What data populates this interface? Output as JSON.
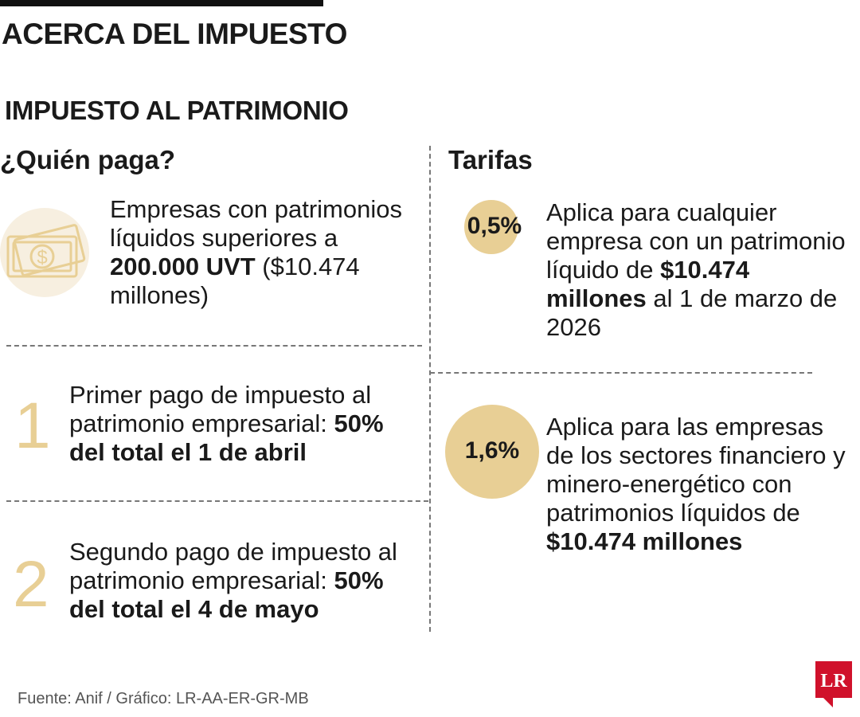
{
  "title": "ACERCA DEL IMPUESTO",
  "subtitle": "IMPUESTO AL PATRIMONIO",
  "who": {
    "heading": "¿Quién paga?",
    "icon": "money-bill-icon",
    "text_1": "Empresas con patrimonios líquidos superiores a ",
    "text_bold": "200.000 UVT",
    "text_2": " ($10.474 millones)"
  },
  "payments": [
    {
      "number": "1",
      "text": "Primer pago de impuesto al patrimonio empresarial: ",
      "bold": "50% del total el 1 de abril"
    },
    {
      "number": "2",
      "text": "Segundo pago de impuesto al patrimonio empresarial: ",
      "bold": "50% del total el 4 de mayo"
    }
  ],
  "rates": {
    "heading": "Tarifas",
    "items": [
      {
        "rate": "0,5%",
        "text_1": "Aplica para cualquier empresa con un patrimonio líquido de ",
        "bold": "$10.474 millones",
        "text_2": " al 1 de marzo de 2026"
      },
      {
        "rate": "1,6%",
        "text_1": "Aplica para las empresas de los sectores financiero y minero-energético con patrimonios líquidos de ",
        "bold": "$10.474 millones",
        "text_2": ""
      }
    ]
  },
  "source": "Fuente: Anif / Gráfico: LR-AA-ER-GR-MB",
  "logo": {
    "text": "LR",
    "color": "#d0112b"
  },
  "colors": {
    "accent": "#e8cf95",
    "icon_bg": "#f7efe0",
    "text": "#1a1a1a"
  }
}
